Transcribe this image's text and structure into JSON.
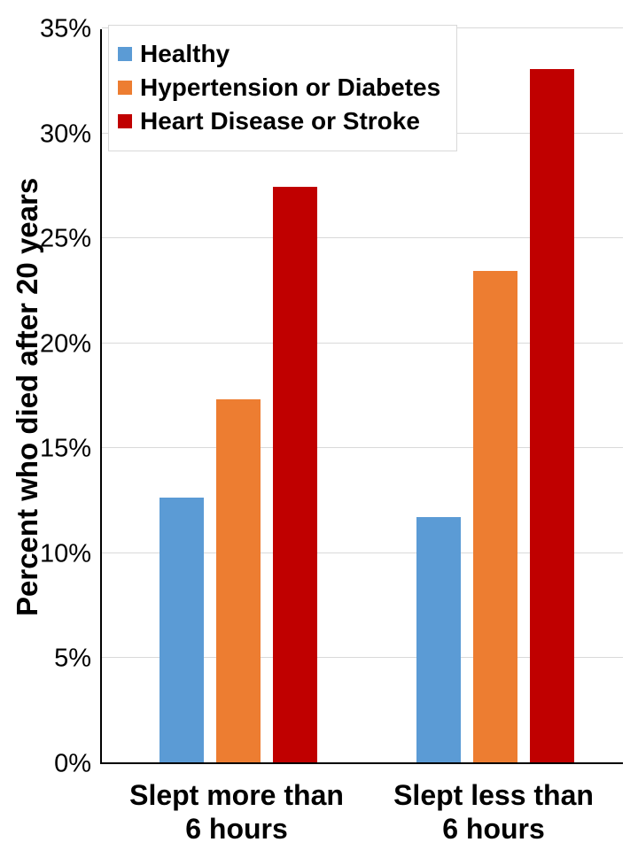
{
  "chart_data": {
    "type": "bar",
    "title": "",
    "ylabel": "Percent who died after 20 years",
    "xlabel": "",
    "y_axis": {
      "min": 0,
      "max": 35,
      "tick_step": 5,
      "tick_labels": [
        "0%",
        "5%",
        "10%",
        "15%",
        "20%",
        "25%",
        "30%",
        "35%"
      ],
      "unit": "%"
    },
    "categories": [
      "Slept more than 6 hours",
      "Slept less than 6 hours"
    ],
    "category_label_lines": [
      [
        "Slept more than",
        "6 hours"
      ],
      [
        "Slept less than",
        "6 hours"
      ]
    ],
    "series": [
      {
        "name": "Healthy",
        "color": "#5B9BD5",
        "values": [
          12.6,
          11.7
        ]
      },
      {
        "name": "Hypertension or Diabetes",
        "color": "#ED7D31",
        "values": [
          17.3,
          23.4
        ]
      },
      {
        "name": "Heart Disease or Stroke",
        "color": "#C00000",
        "values": [
          27.4,
          33.0
        ]
      }
    ],
    "legend_position": "top-left-inside",
    "grid": true,
    "gridline_color": "#D9D9D9",
    "axis_color": "#000000",
    "background": "#FFFFFF"
  }
}
